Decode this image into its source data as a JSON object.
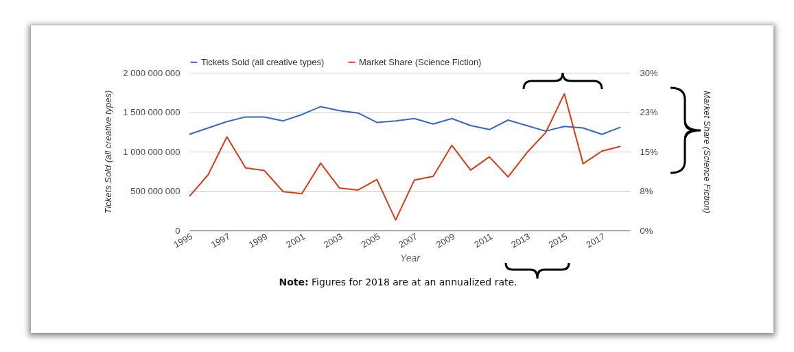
{
  "chart_data": {
    "type": "line",
    "xlabel": "Year",
    "ylabel": "Tickets Sold (all creative types)",
    "y2label": "Market Share (Science Fiction)",
    "x": [
      1995,
      1996,
      1997,
      1998,
      1999,
      2000,
      2001,
      2002,
      2003,
      2004,
      2005,
      2006,
      2007,
      2008,
      2009,
      2010,
      2011,
      2012,
      2013,
      2014,
      2015,
      2016,
      2017,
      2018
    ],
    "series": [
      {
        "name": "Tickets Sold (all creative types)",
        "color": "#3366cc",
        "values": [
          1220000000,
          1300000000,
          1380000000,
          1440000000,
          1440000000,
          1390000000,
          1470000000,
          1570000000,
          1520000000,
          1490000000,
          1370000000,
          1390000000,
          1420000000,
          1350000000,
          1420000000,
          1330000000,
          1280000000,
          1400000000,
          1330000000,
          1260000000,
          1320000000,
          1300000000,
          1220000000,
          1310000000
        ]
      },
      {
        "name": "Market Share (Science Fiction)",
        "color": "#dc3912",
        "axis": "y2",
        "values": [
          6.5,
          10.6,
          17.8,
          11.9,
          11.4,
          7.4,
          7.0,
          12.8,
          8.1,
          7.7,
          9.7,
          2.0,
          9.6,
          10.3,
          16.2,
          11.5,
          14.0,
          10.2,
          14.8,
          18.6,
          26.0,
          12.7,
          15.1,
          16.0
        ]
      }
    ],
    "xlim": [
      1995,
      2018.5
    ],
    "xticks": [
      1995,
      1997,
      1999,
      2001,
      2003,
      2005,
      2007,
      2009,
      2011,
      2013,
      2015,
      2017
    ],
    "ylim": [
      0,
      2000000000
    ],
    "yticks": [
      0,
      {
        "value": 500000000,
        "label": "500 000 000"
      },
      {
        "value": 1000000000,
        "label": "1 000 000 000"
      },
      {
        "value": 1500000000,
        "label": "1 500 000 000"
      },
      {
        "value": 2000000000,
        "label": "2 000 000 000"
      }
    ],
    "y2lim": [
      0,
      30
    ],
    "y2ticks": [
      {
        "value": 0,
        "label": "0%"
      },
      {
        "value": 7.5,
        "label": "8%"
      },
      {
        "value": 15,
        "label": "15%"
      },
      {
        "value": 22.5,
        "label": "23%"
      },
      {
        "value": 30,
        "label": "30%"
      }
    ],
    "grid": "y",
    "legend": "top",
    "annotations": [
      "Note: Figures for 2018 are at an annualized rate."
    ]
  }
}
